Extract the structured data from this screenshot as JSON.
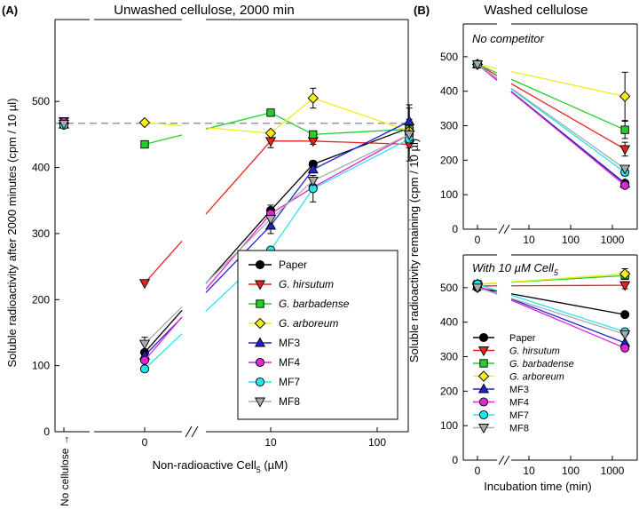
{
  "panels": {
    "a": {
      "letter": "(A)",
      "title": "Unwashed cellulose, 2000 min"
    },
    "b": {
      "letter": "(B)",
      "title": "Washed cellulose"
    }
  },
  "axes": {
    "a_ylabel": "Soluble radioactivity after 2000 minutes (cpm / 10 µl)",
    "a_xlabel_main": "Non-radioactive Cell",
    "a_xlabel_sub": "5",
    "a_xlabel_unit": " (µM)",
    "a_nocellulose": "No cellulose →",
    "a_xticks": [
      "0",
      "10",
      "100"
    ],
    "a_yticks": [
      "0",
      "100",
      "200",
      "300",
      "400",
      "500"
    ],
    "b_ylabel": "Soluble radioactivity remaining (cpm / 10 µl)",
    "b_xlabel": "Incubation time (min)",
    "b_xticks": [
      "0",
      "10",
      "100",
      "1000"
    ],
    "b_yticks": [
      "0",
      "100",
      "200",
      "300",
      "400",
      "500"
    ]
  },
  "insets": {
    "top": "No competitor",
    "bottom_main": "With 10 µM Cell",
    "bottom_sub": "5"
  },
  "legend": [
    {
      "name": "Paper",
      "italic": false
    },
    {
      "name": "G. hirsutum",
      "italic": true
    },
    {
      "name": "G. barbadense",
      "italic": true
    },
    {
      "name": "G. arboreum",
      "italic": true
    },
    {
      "name": "MF3",
      "italic": false
    },
    {
      "name": "MF4",
      "italic": false
    },
    {
      "name": "MF7",
      "italic": false
    },
    {
      "name": "MF8",
      "italic": false
    }
  ],
  "chart_data": [
    {
      "id": "A",
      "type": "line",
      "title": "Unwashed cellulose, 2000 min",
      "xlabel": "Non-radioactive Cell5 (µM)",
      "ylabel": "Soluble radioactivity after 2000 minutes (cpm / 10 µl)",
      "x": [
        0,
        10,
        25,
        200
      ],
      "ylim": [
        0,
        500
      ],
      "reference_line": {
        "label": "No cellulose",
        "value": 467
      },
      "series": [
        {
          "name": "Paper",
          "color": "#000000",
          "marker": "circle",
          "values": [
            120,
            335,
            405,
            460
          ],
          "err": [
            0,
            8,
            5,
            30
          ],
          "nocellulose": 468
        },
        {
          "name": "G. hirsutum",
          "color": "#e8221f",
          "marker": "triangle-down",
          "values": [
            225,
            440,
            440,
            435
          ],
          "err": [
            0,
            10,
            5,
            25
          ],
          "nocellulose": 470
        },
        {
          "name": "G. barbadense",
          "color": "#22d02a",
          "marker": "square",
          "values": [
            435,
            483,
            450,
            458
          ],
          "err": [
            0,
            0,
            0,
            15
          ],
          "nocellulose": 466
        },
        {
          "name": "G. arboreum",
          "color": "#f2ec1c",
          "marker": "diamond",
          "values": [
            468,
            452,
            505,
            455
          ],
          "err": [
            0,
            0,
            15,
            10
          ],
          "nocellulose": 467
        },
        {
          "name": "MF3",
          "color": "#2222cc",
          "marker": "triangle-up",
          "values": [
            115,
            312,
            397,
            470
          ],
          "err": [
            0,
            12,
            5,
            25
          ],
          "nocellulose": 465
        },
        {
          "name": "MF4",
          "color": "#e024d8",
          "marker": "circle",
          "values": [
            108,
            330,
            370,
            450
          ],
          "err": [
            0,
            0,
            0,
            0
          ],
          "nocellulose": 469
        },
        {
          "name": "MF7",
          "color": "#22e6ee",
          "marker": "circle",
          "values": [
            95,
            275,
            368,
            443
          ],
          "err": [
            0,
            0,
            20,
            0
          ],
          "nocellulose": 464
        },
        {
          "name": "MF8",
          "color": "#aaaaaa",
          "marker": "triangle-down",
          "values": [
            133,
            322,
            380,
            450
          ],
          "err": [
            10,
            0,
            0,
            0
          ],
          "nocellulose": 466
        }
      ]
    },
    {
      "id": "B-top",
      "type": "line",
      "title": "No competitor",
      "xlabel": "Incubation time (min)",
      "ylabel": "Soluble radioactivity remaining (cpm / 10 µl)",
      "x": [
        0,
        2000
      ],
      "ylim": [
        0,
        500
      ],
      "series": [
        {
          "name": "Paper",
          "color": "#000000",
          "marker": "circle",
          "values": [
            478,
            133
          ],
          "err": [
            0,
            0
          ]
        },
        {
          "name": "G. hirsutum",
          "color": "#e8221f",
          "marker": "triangle-down",
          "values": [
            478,
            232
          ],
          "err": [
            0,
            20
          ]
        },
        {
          "name": "G. barbadense",
          "color": "#22d02a",
          "marker": "square",
          "values": [
            478,
            288
          ],
          "err": [
            0,
            25
          ]
        },
        {
          "name": "G. arboreum",
          "color": "#f2ec1c",
          "marker": "diamond",
          "values": [
            478,
            385
          ],
          "err": [
            0,
            70
          ]
        },
        {
          "name": "MF3",
          "color": "#2222cc",
          "marker": "triangle-up",
          "values": [
            478,
            132
          ],
          "err": [
            0,
            0
          ]
        },
        {
          "name": "MF4",
          "color": "#e024d8",
          "marker": "circle",
          "values": [
            478,
            127
          ],
          "err": [
            0,
            0
          ]
        },
        {
          "name": "MF7",
          "color": "#22e6ee",
          "marker": "circle",
          "values": [
            478,
            165
          ],
          "err": [
            0,
            10
          ]
        },
        {
          "name": "MF8",
          "color": "#aaaaaa",
          "marker": "triangle-down",
          "values": [
            478,
            175
          ],
          "err": [
            0,
            0
          ]
        }
      ]
    },
    {
      "id": "B-bottom",
      "type": "line",
      "title": "With 10 µM Cell5",
      "xlabel": "Incubation time (min)",
      "ylabel": "Soluble radioactivity remaining (cpm / 10 µl)",
      "x": [
        0,
        2000
      ],
      "ylim": [
        0,
        500
      ],
      "series": [
        {
          "name": "Paper",
          "color": "#000000",
          "marker": "circle",
          "values": [
            500,
            422
          ],
          "err": [
            0,
            0
          ]
        },
        {
          "name": "G. hirsutum",
          "color": "#e8221f",
          "marker": "triangle-down",
          "values": [
            505,
            507
          ],
          "err": [
            0,
            10
          ]
        },
        {
          "name": "G. barbadense",
          "color": "#22d02a",
          "marker": "square",
          "values": [
            510,
            535
          ],
          "err": [
            0,
            10
          ]
        },
        {
          "name": "G. arboreum",
          "color": "#f2ec1c",
          "marker": "diamond",
          "values": [
            510,
            540
          ],
          "err": [
            0,
            15
          ]
        },
        {
          "name": "MF3",
          "color": "#2222cc",
          "marker": "triangle-up",
          "values": [
            505,
            340
          ],
          "err": [
            0,
            0
          ]
        },
        {
          "name": "MF4",
          "color": "#e024d8",
          "marker": "circle",
          "values": [
            505,
            325
          ],
          "err": [
            0,
            0
          ]
        },
        {
          "name": "MF7",
          "color": "#22e6ee",
          "marker": "circle",
          "values": [
            510,
            372
          ],
          "err": [
            0,
            0
          ]
        },
        {
          "name": "MF8",
          "color": "#aaaaaa",
          "marker": "triangle-down",
          "values": [
            500,
            365
          ],
          "err": [
            0,
            0
          ]
        }
      ]
    }
  ]
}
